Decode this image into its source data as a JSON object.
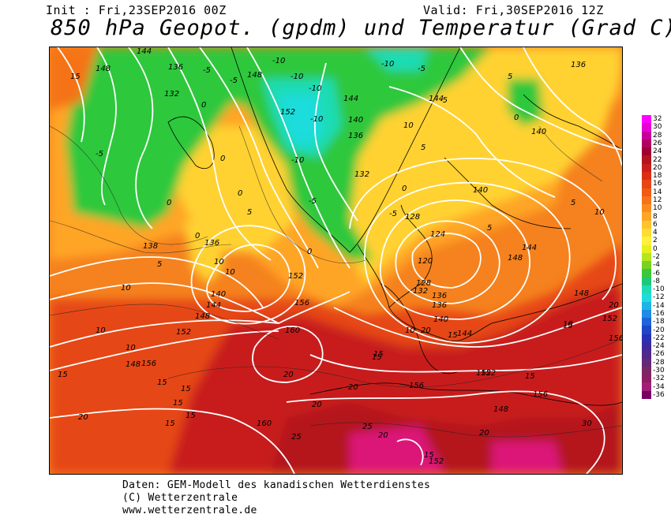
{
  "header": {
    "init": "Init : Fri,23SEP2016 00Z",
    "valid": "Valid: Fri,30SEP2016 12Z",
    "title": "850 hPa Geopot. (gpdm) und Temperatur (Grad C)"
  },
  "footer": {
    "line1": "Daten: GEM-Modell des kanadischen Wetterdienstes",
    "line2": "(C) Wetterzentrale",
    "line3": "www.wetterzentrale.de"
  },
  "scale": {
    "labels": [
      "32",
      "30",
      "28",
      "26",
      "24",
      "22",
      "20",
      "18",
      "16",
      "14",
      "12",
      "10",
      "8",
      "6",
      "4",
      "2",
      "0",
      "-2",
      "-4",
      "-6",
      "-8",
      "-10",
      "-12",
      "-14",
      "-16",
      "-18",
      "-20",
      "-22",
      "-24",
      "-26",
      "-28",
      "-30",
      "-32",
      "-34",
      "-36"
    ],
    "colors": [
      "#ff00ff",
      "#e600d2",
      "#c8009b",
      "#b40064",
      "#a00032",
      "#b4141e",
      "#c81e1e",
      "#dc2d14",
      "#e64614",
      "#f05a14",
      "#f57319",
      "#fa8c1e",
      "#ffa528",
      "#ffc32d",
      "#ffdc32",
      "#fff03c",
      "#e6f01e",
      "#b4e61e",
      "#78d21e",
      "#3cc83c",
      "#1ec878",
      "#1edcb4",
      "#1edcdc",
      "#1eb4e6",
      "#1e8ce6",
      "#1e64dc",
      "#1e46c8",
      "#2832b4",
      "#3c28a0",
      "#50288c",
      "#642878",
      "#782864",
      "#8c1e64",
      "#a01e78",
      "#780064"
    ]
  },
  "map_labels": {
    "heights": [
      "144",
      "148",
      "136",
      "132",
      "148",
      "152",
      "144",
      "140",
      "136",
      "132",
      "140",
      "144",
      "128",
      "124",
      "120",
      "128",
      "132",
      "136",
      "136",
      "140",
      "144",
      "148",
      "152",
      "156",
      "160",
      "156",
      "152",
      "148",
      "144",
      "140",
      "136",
      "138",
      "148",
      "152",
      "156",
      "156",
      "160",
      "152",
      "148",
      "144",
      "140",
      "136",
      "152",
      "156",
      "152",
      "148"
    ],
    "temps": [
      "15",
      "-5",
      "-5",
      "-5",
      "-10",
      "-10",
      "-10",
      "-10",
      "-10",
      "-10",
      "-5",
      "-5",
      "-5",
      "0",
      "0",
      "0",
      "0",
      "0",
      "0",
      "5",
      "5",
      "5",
      "5",
      "5",
      "10",
      "10",
      "10",
      "10",
      "10",
      "10",
      "15",
      "15",
      "15",
      "15",
      "15",
      "15",
      "15",
      "15",
      "20",
      "20",
      "20",
      "20",
      "20",
      "20",
      "25",
      "25",
      "30",
      "15",
      "10",
      "10",
      "0",
      "5",
      "-5",
      "0",
      "20",
      "15",
      "20",
      "15",
      "15",
      "10"
    ]
  },
  "colors": {
    "green": "#2dc83c",
    "cyan": "#1edcdc",
    "yellow": "#ffd232",
    "orange": "#fa8c1e",
    "red": "#c81e1e",
    "magenta": "#dc1478"
  }
}
